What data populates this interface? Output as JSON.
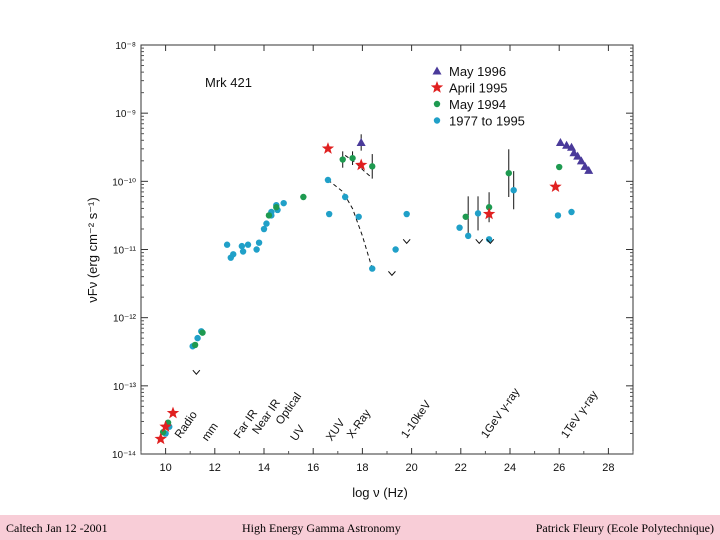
{
  "footer": {
    "left": "Caltech Jan 12 -2001",
    "center": "High Energy Gamma Astronomy",
    "right": "Patrick Fleury (Ecole Polytechnique)"
  },
  "chart_data": {
    "type": "scatter",
    "title": "Mrk 421",
    "xlabel": "log ν (Hz)",
    "ylabel": "νFν (erg cm⁻² s⁻¹)",
    "xlim": [
      9,
      29
    ],
    "ylim": [
      -14,
      -8
    ],
    "xticks": [
      "10",
      "12",
      "14",
      "16",
      "18",
      "20",
      "22",
      "24",
      "26",
      "28"
    ],
    "ytick_labels": [
      "10⁻⁸",
      "10⁻⁹",
      "10⁻¹⁰",
      "10⁻¹¹",
      "10⁻¹²",
      "10⁻¹³",
      "10⁻¹⁴"
    ],
    "series": [
      {
        "name": "May 1996",
        "marker": "triangle",
        "color": "#4a3a9a",
        "points": [
          [
            17.95,
            -9.43
          ],
          [
            26.05,
            -9.43
          ],
          [
            26.3,
            -9.47
          ],
          [
            26.5,
            -9.5
          ],
          [
            26.6,
            -9.58
          ],
          [
            26.75,
            -9.63
          ],
          [
            26.9,
            -9.7
          ],
          [
            27.05,
            -9.78
          ],
          [
            27.2,
            -9.84
          ]
        ]
      },
      {
        "name": "April 1995",
        "marker": "star",
        "color": "#e02020",
        "points": [
          [
            9.8,
            -13.78
          ],
          [
            10.0,
            -13.6
          ],
          [
            10.3,
            -13.4
          ],
          [
            16.6,
            -9.52
          ],
          [
            17.95,
            -9.76
          ],
          [
            23.15,
            -10.48
          ],
          [
            25.85,
            -10.08
          ]
        ]
      },
      {
        "name": "May 1994",
        "marker": "circle",
        "color": "#1e9a50",
        "points": [
          [
            9.9,
            -13.68
          ],
          [
            10.1,
            -13.54
          ],
          [
            11.2,
            -12.4
          ],
          [
            11.5,
            -12.22
          ],
          [
            14.2,
            -10.5
          ],
          [
            14.5,
            -10.38
          ],
          [
            15.6,
            -10.23
          ],
          [
            17.2,
            -9.68
          ],
          [
            17.6,
            -9.66
          ],
          [
            18.4,
            -9.78
          ],
          [
            22.2,
            -10.52
          ],
          [
            23.15,
            -10.38
          ],
          [
            23.95,
            -9.88
          ],
          [
            26.0,
            -9.79
          ]
        ]
      },
      {
        "name": "1977 to 1995",
        "marker": "circle",
        "color": "#20a0c8",
        "points": [
          [
            10.0,
            -13.7
          ],
          [
            10.15,
            -13.6
          ],
          [
            11.1,
            -12.42
          ],
          [
            11.3,
            -12.3
          ],
          [
            11.45,
            -12.2
          ],
          [
            12.5,
            -10.93
          ],
          [
            12.75,
            -11.07
          ],
          [
            13.1,
            -10.95
          ],
          [
            13.35,
            -10.93
          ],
          [
            13.8,
            -10.9
          ],
          [
            14.1,
            -10.62
          ],
          [
            14.3,
            -10.45
          ],
          [
            14.5,
            -10.35
          ],
          [
            14.8,
            -10.32
          ],
          [
            12.65,
            -11.12
          ],
          [
            13.15,
            -11.03
          ],
          [
            13.7,
            -11.0
          ],
          [
            14.0,
            -10.7
          ],
          [
            14.3,
            -10.5
          ],
          [
            14.55,
            -10.42
          ],
          [
            16.6,
            -9.98
          ],
          [
            16.65,
            -10.48
          ],
          [
            17.3,
            -10.23
          ],
          [
            17.85,
            -10.52
          ],
          [
            18.4,
            -11.28
          ],
          [
            19.35,
            -11.0
          ],
          [
            19.8,
            -10.48
          ],
          [
            21.95,
            -10.68
          ],
          [
            22.3,
            -10.8
          ],
          [
            22.7,
            -10.47
          ],
          [
            23.15,
            -10.85
          ],
          [
            24.15,
            -10.13
          ],
          [
            25.95,
            -10.5
          ],
          [
            26.5,
            -10.45
          ]
        ]
      }
    ],
    "upper_limits": [
      [
        11.25,
        -12.8
      ],
      [
        19.2,
        -11.35
      ],
      [
        19.8,
        -10.88
      ],
      [
        22.75,
        -10.88
      ],
      [
        23.2,
        -10.88
      ]
    ],
    "band_labels": [
      "Radio",
      "mm",
      "Far IR",
      "Near IR",
      "Optical",
      "UV",
      "XUV",
      "X-Ray",
      "1-10keV",
      "1GeV γ-ray",
      "1TeV γ-ray"
    ]
  }
}
